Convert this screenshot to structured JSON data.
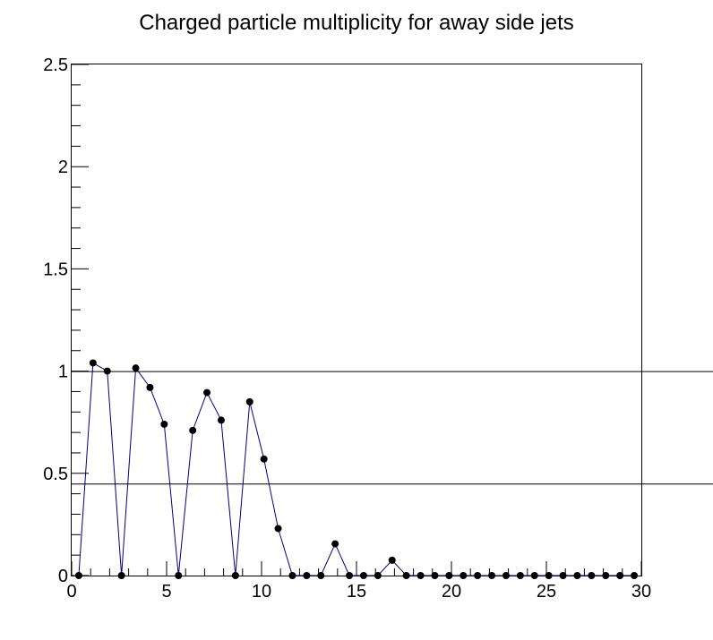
{
  "chart_data": {
    "type": "line",
    "title": "Charged particle multiplicity for away side jets",
    "xlabel": "",
    "ylabel": "",
    "xlim": [
      0,
      30
    ],
    "ylim": [
      0,
      2.5
    ],
    "x_ticks": [
      "0",
      "5",
      "10",
      "15",
      "20",
      "25",
      "30"
    ],
    "y_ticks": [
      "0",
      "0.5",
      "1",
      "1.5",
      "2",
      "2.5"
    ],
    "grid": false,
    "legend": "none",
    "reference_lines_y": [
      1.0,
      0.45
    ],
    "series": [
      {
        "color": "#000080",
        "marker": "circle",
        "x": [
          0.375,
          1.125,
          1.875,
          2.625,
          3.375,
          4.125,
          4.875,
          5.625,
          6.375,
          7.125,
          7.875,
          8.625,
          9.375,
          10.125,
          10.875,
          11.625,
          12.375,
          13.125,
          13.875,
          14.625,
          15.375,
          16.125,
          16.875,
          17.625,
          18.375,
          19.125,
          19.875,
          20.625,
          21.375,
          22.125,
          22.875,
          23.625,
          24.375,
          25.125,
          25.875,
          26.625,
          27.375,
          28.125,
          28.875,
          29.625
        ],
        "values": [
          0,
          1.04,
          1.0,
          0,
          1.015,
          0.92,
          0.74,
          0,
          0.71,
          0.895,
          0.76,
          0,
          0.85,
          0.57,
          0.23,
          0,
          0,
          0,
          0.155,
          0,
          0,
          0,
          0.075,
          0,
          0,
          0,
          0,
          0,
          0,
          0,
          0,
          0,
          0,
          0,
          0,
          0,
          0,
          0,
          0,
          0
        ]
      }
    ]
  }
}
